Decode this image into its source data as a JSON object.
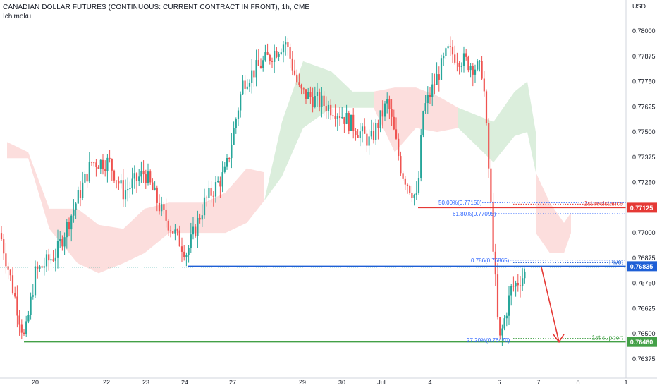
{
  "header": {
    "title": "CANADIAN DOLLAR FUTURES (CONTINUOUS: CURRENT CONTRACT IN FRONT), 1h, CME",
    "indicator": "Ichimoku",
    "currency": "USD"
  },
  "chart_data": {
    "type": "candlestick",
    "title": "CANADIAN DOLLAR FUTURES (CONTINUOUS: CURRENT CONTRACT IN FRONT), 1h, CME",
    "y_axis_unit": "USD",
    "ylim": [
      0.7635,
      0.7809
    ],
    "y_ticks": [
      "0.78000",
      "0.77875",
      "0.77750",
      "0.77625",
      "0.77500",
      "0.77375",
      "0.77250",
      "0.77000",
      "0.76875",
      "0.76750",
      "0.76625",
      "0.76500",
      "0.76375"
    ],
    "x_ticks": [
      "20",
      "22",
      "23",
      "24",
      "27",
      "29",
      "30",
      "Jul",
      "4",
      "6",
      "7",
      "8",
      "1"
    ],
    "price_path": [
      [
        "20",
        0.77
      ],
      [
        "20",
        0.7647
      ],
      [
        "20",
        0.768
      ],
      [
        "20",
        0.769
      ],
      [
        "22",
        0.7735
      ],
      [
        "22",
        0.7735
      ],
      [
        "22",
        0.772
      ],
      [
        "23",
        0.773
      ],
      [
        "23",
        0.771
      ],
      [
        "24",
        0.769
      ],
      [
        "24",
        0.7715
      ],
      [
        "27",
        0.773
      ],
      [
        "27",
        0.7775
      ],
      [
        "29",
        0.7795
      ],
      [
        "29",
        0.777
      ],
      [
        "30",
        0.776
      ],
      [
        "30",
        0.7745
      ],
      [
        "Jul",
        0.7765
      ],
      [
        "Jul",
        0.773
      ],
      [
        "4",
        0.7716
      ],
      [
        "4",
        0.776
      ],
      [
        "4",
        0.779
      ],
      [
        "6",
        0.778
      ],
      [
        "6",
        0.7645
      ],
      [
        "6",
        0.7672
      ],
      [
        "6",
        0.768
      ]
    ],
    "levels": [
      {
        "name": "1st resistance",
        "value": 0.77125,
        "tag": "0.77125",
        "color": "#e53935"
      },
      {
        "name": "Pivot",
        "value": 0.76835,
        "tag": "0.76835",
        "color": "#1e5fd6"
      },
      {
        "name": "1st support",
        "value": 0.7646,
        "tag": "0.76460",
        "color": "#43a047"
      }
    ],
    "fib_labels": [
      {
        "text": "50.00%(0.77150)",
        "value": 0.7715
      },
      {
        "text": "61.80%(0.77095)",
        "value": 0.77095
      },
      {
        "text": "0.786(0.76865)",
        "value": 0.76865
      },
      {
        "text": "27.20%(0.76470)",
        "value": 0.7647
      }
    ],
    "forecast_arrow": {
      "from": 0.7683,
      "to": 0.7646
    },
    "colors": {
      "up": "#26a69a",
      "down": "#ef5350",
      "cloud_bull": "#cfe8d0",
      "cloud_bear": "#fbd3d1"
    }
  }
}
